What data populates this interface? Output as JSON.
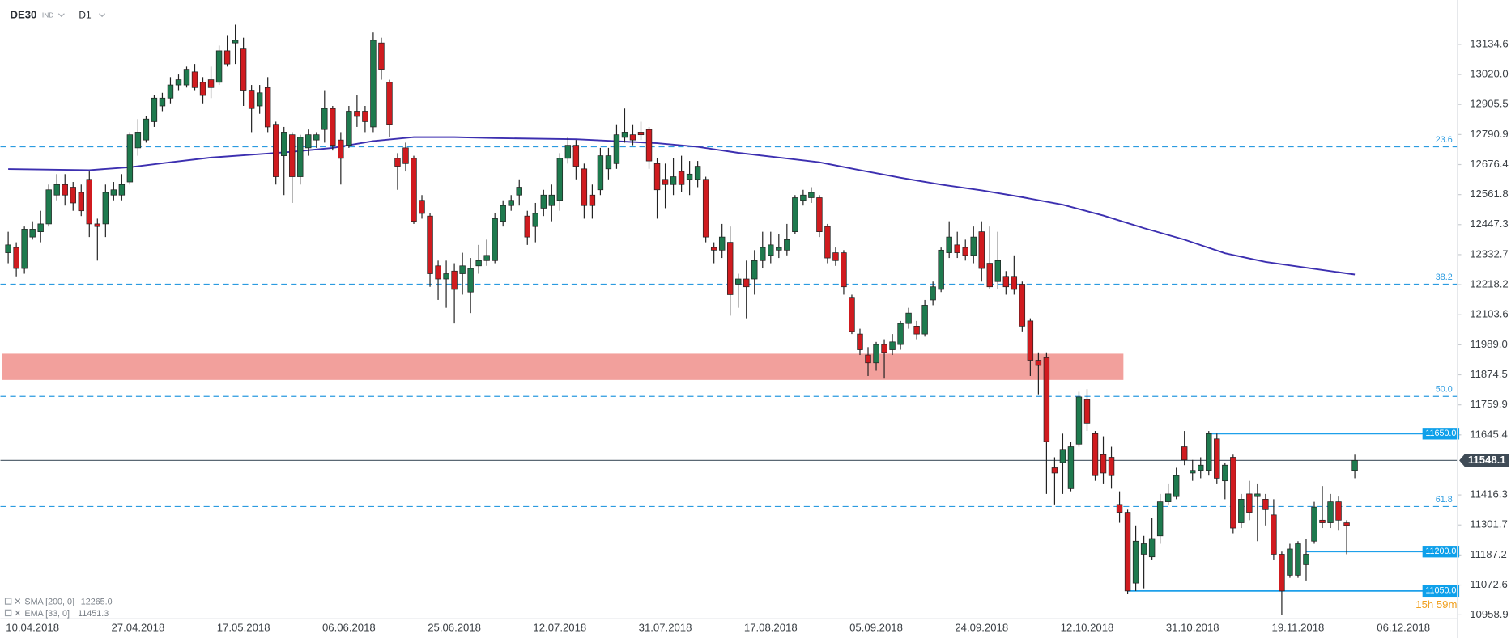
{
  "chart_data": {
    "type": "candlestick",
    "symbol": "DE30",
    "market": "IND",
    "timeframe": "D1",
    "up_color": "#1e7a4e",
    "down_color": "#d01b1f",
    "categories": [
      null,
      null,
      null,
      "10.04.2018",
      null,
      null,
      null,
      null,
      null,
      null,
      null,
      null,
      null,
      null,
      null,
      null,
      "27.04.2018",
      null,
      null,
      null,
      null,
      null,
      null,
      null,
      null,
      null,
      null,
      null,
      null,
      "17.05.2018",
      null,
      null,
      null,
      null,
      null,
      null,
      null,
      null,
      null,
      null,
      null,
      null,
      "06.06.2018",
      null,
      null,
      null,
      null,
      null,
      null,
      null,
      null,
      null,
      null,
      null,
      null,
      "25.06.2018",
      null,
      null,
      null,
      null,
      null,
      null,
      null,
      null,
      null,
      null,
      null,
      null,
      "12.07.2018",
      null,
      null,
      null,
      null,
      null,
      null,
      null,
      null,
      null,
      null,
      null,
      null,
      "31.07.2018",
      null,
      null,
      null,
      null,
      null,
      null,
      null,
      null,
      null,
      null,
      null,
      null,
      "17.08.2018",
      null,
      null,
      null,
      null,
      null,
      null,
      null,
      null,
      null,
      null,
      null,
      null,
      "05.09.2018",
      null,
      null,
      null,
      null,
      null,
      null,
      null,
      null,
      null,
      null,
      null,
      null,
      "24.09.2018",
      null,
      null,
      null,
      null,
      null,
      null,
      null,
      null,
      null,
      null,
      null,
      null,
      "12.10.2018",
      null,
      null,
      null,
      null,
      null,
      null,
      null,
      null,
      null,
      null,
      null,
      null,
      "31.10.2018",
      null,
      null,
      null,
      null,
      null,
      null,
      null,
      null,
      null,
      null,
      null,
      null,
      "19.11.2018",
      null,
      null,
      null,
      null,
      null,
      null,
      null,
      null,
      null,
      null,
      null,
      null,
      "06.12.2018"
    ],
    "open": [
      12340,
      12360,
      12280,
      12400,
      12420,
      12450,
      12560,
      12600,
      12590,
      12570,
      12620,
      12450,
      12450,
      12560,
      12560,
      12610,
      12740,
      12770,
      12840,
      12900,
      12930,
      12980,
      12980,
      13030,
      12990,
      13000,
      12990,
      13110,
      13140,
      13120,
      12960,
      12900,
      12970,
      12830,
      12710,
      12790,
      12630,
      12740,
      12770,
      12810,
      12890,
      12770,
      12750,
      12880,
      12880,
      12820,
      13140,
      12990,
      12700,
      12740,
      12700,
      12540,
      12480,
      12290,
      12240,
      12270,
      12260,
      12190,
      12290,
      12310,
      12310,
      12460,
      12520,
      12560,
      12480,
      12440,
      12510,
      12520,
      12540,
      12700,
      12750,
      12660,
      12560,
      12580,
      12660,
      12680,
      12780,
      12790,
      12800,
      12810,
      12680,
      12620,
      12600,
      12650,
      12620,
      12620,
      12620,
      12360,
      12350,
      12380,
      12220,
      12240,
      12240,
      12310,
      12330,
      12350,
      12350,
      12420,
      12540,
      12550,
      12550,
      12440,
      12340,
      12340,
      12170,
      12030,
      11950,
      11920,
      11990,
      11970,
      11990,
      12070,
      12060,
      12030,
      12160,
      12200,
      12340,
      12370,
      12360,
      12330,
      12420,
      12300,
      12230,
      12250,
      12250,
      12220,
      12080,
      11930,
      11940,
      11520,
      11540,
      11440,
      11610,
      11780,
      11650,
      11570,
      11560,
      11380,
      11350,
      11080,
      11190,
      11180,
      11260,
      11390,
      11410,
      11600,
      11500,
      11510,
      11510,
      11630,
      11470,
      11560,
      11310,
      11420,
      11410,
      11400,
      11340,
      11190,
      11110,
      11110,
      11150,
      11240,
      11320,
      11310,
      11390,
      11310,
      11510,
      null,
      null,
      null,
      null,
      null,
      null
    ],
    "high": [
      12420,
      12380,
      12440,
      12460,
      12500,
      12600,
      12640,
      12640,
      12610,
      12600,
      12650,
      12470,
      12600,
      12610,
      12640,
      12800,
      12850,
      12860,
      12940,
      12950,
      13010,
      13020,
      13050,
      13060,
      13010,
      13050,
      13130,
      13170,
      13210,
      13160,
      12980,
      12980,
      13010,
      12840,
      12820,
      12800,
      12790,
      12810,
      12800,
      12960,
      12900,
      12800,
      12900,
      12940,
      12900,
      13180,
      13160,
      13000,
      12720,
      12760,
      12710,
      12560,
      12490,
      12310,
      12310,
      12300,
      12340,
      12320,
      12370,
      12390,
      12490,
      12540,
      12560,
      12620,
      12500,
      12530,
      12580,
      12600,
      12720,
      12780,
      12770,
      12680,
      12600,
      12740,
      12740,
      12830,
      12890,
      12830,
      12840,
      12820,
      12700,
      12680,
      12700,
      12710,
      12690,
      12690,
      12630,
      12380,
      12450,
      12440,
      12260,
      12310,
      12350,
      12420,
      12420,
      12410,
      12450,
      12560,
      12580,
      12590,
      12560,
      12450,
      12360,
      12350,
      12180,
      12050,
      11980,
      12000,
      12010,
      12030,
      12080,
      12130,
      12080,
      12160,
      12230,
      12360,
      12460,
      12420,
      12390,
      12440,
      12460,
      12440,
      12420,
      12270,
      12330,
      12230,
      12090,
      11960,
      11960,
      11560,
      11650,
      11620,
      11810,
      11820,
      11660,
      11640,
      11600,
      11430,
      11360,
      11300,
      11260,
      11330,
      11420,
      11460,
      11520,
      11660,
      11550,
      11560,
      11660,
      11650,
      11540,
      11570,
      11420,
      11470,
      11460,
      11420,
      11400,
      11200,
      11230,
      11240,
      11250,
      11390,
      11450,
      11420,
      11410,
      11320,
      11570,
      null,
      null,
      null,
      null,
      null,
      null
    ],
    "low": [
      12300,
      12250,
      12260,
      12390,
      12380,
      12440,
      12540,
      12520,
      12500,
      12480,
      12400,
      12310,
      12400,
      12540,
      12540,
      12600,
      12710,
      12760,
      12820,
      12880,
      12910,
      12960,
      12970,
      12960,
      12910,
      12930,
      12980,
      13050,
      13060,
      12900,
      12800,
      12870,
      12800,
      12600,
      12560,
      12530,
      12600,
      12710,
      12740,
      12760,
      12730,
      12600,
      12740,
      12820,
      12800,
      12800,
      13000,
      12780,
      12580,
      12650,
      12450,
      12470,
      12210,
      12160,
      12130,
      12070,
      12180,
      12110,
      12260,
      12290,
      12300,
      12440,
      12500,
      12520,
      12370,
      12380,
      12480,
      12460,
      12500,
      12680,
      12620,
      12470,
      12470,
      12560,
      12620,
      12660,
      12760,
      12750,
      12770,
      12660,
      12470,
      12510,
      12560,
      12570,
      12560,
      12590,
      12380,
      12300,
      12320,
      12100,
      12130,
      12090,
      12180,
      12280,
      12300,
      12320,
      12330,
      12410,
      12520,
      12530,
      12400,
      12300,
      12290,
      12180,
      12030,
      11950,
      11870,
      11890,
      11860,
      11950,
      11970,
      12050,
      12010,
      12020,
      12140,
      12190,
      12320,
      12320,
      12310,
      12300,
      12230,
      12200,
      12200,
      12180,
      12180,
      12040,
      11870,
      11800,
      11420,
      11380,
      11420,
      11430,
      11600,
      11660,
      11470,
      11460,
      11440,
      11310,
      11040,
      11050,
      11060,
      11170,
      11230,
      11380,
      11400,
      11530,
      11470,
      11480,
      11490,
      11460,
      11400,
      11270,
      11290,
      11320,
      11240,
      11300,
      11170,
      10960,
      11100,
      11100,
      11090,
      11230,
      11290,
      11290,
      11280,
      11190,
      11480,
      null,
      null,
      null,
      null,
      null,
      null
    ],
    "close": [
      12370,
      12280,
      12430,
      12430,
      12450,
      12580,
      12600,
      12560,
      12530,
      12500,
      12450,
      12440,
      12570,
      12580,
      12600,
      12790,
      12800,
      12850,
      12930,
      12930,
      12980,
      13000,
      13040,
      12970,
      12940,
      12970,
      13110,
      13060,
      13150,
      12960,
      12890,
      12950,
      12820,
      12630,
      12800,
      12630,
      12780,
      12790,
      12790,
      12890,
      12750,
      12700,
      12880,
      12860,
      12840,
      13150,
      13040,
      12830,
      12670,
      12680,
      12460,
      12490,
      12260,
      12240,
      12260,
      12200,
      12290,
      12280,
      12310,
      12330,
      12470,
      12520,
      12540,
      12590,
      12400,
      12490,
      12560,
      12560,
      12700,
      12750,
      12670,
      12520,
      12520,
      12710,
      12710,
      12790,
      12800,
      12770,
      12790,
      12690,
      12580,
      12600,
      12630,
      12600,
      12640,
      12670,
      12400,
      12350,
      12400,
      12180,
      12240,
      12210,
      12310,
      12360,
      12370,
      12360,
      12390,
      12550,
      12560,
      12570,
      12420,
      12320,
      12310,
      12210,
      12040,
      11970,
      11920,
      11990,
      11960,
      12000,
      12070,
      12110,
      12030,
      12140,
      12210,
      12350,
      12400,
      12340,
      12330,
      12400,
      12280,
      12210,
      12310,
      12210,
      12200,
      12060,
      11930,
      11910,
      11620,
      11500,
      11590,
      11600,
      11790,
      11690,
      11490,
      11500,
      11490,
      11350,
      11050,
      11240,
      11230,
      11250,
      11390,
      11420,
      11490,
      11550,
      11510,
      11530,
      11650,
      11480,
      11530,
      11290,
      11400,
      11350,
      11420,
      11360,
      11190,
      11050,
      11210,
      11230,
      11190,
      11370,
      11310,
      11390,
      11320,
      11300,
      11548.1,
      null,
      null,
      null,
      null,
      null,
      null
    ],
    "sma": {
      "name": "SMA [200, 0]",
      "legend_value": "12265.0",
      "color": "#3c2fb0",
      "x": [
        0,
        10,
        15,
        20,
        25,
        30,
        35,
        40,
        45,
        50,
        55,
        60,
        70,
        80,
        85,
        90,
        95,
        100,
        105,
        110,
        115,
        120,
        125,
        130,
        135,
        140,
        145,
        150,
        155,
        160,
        166
      ],
      "values": [
        12659,
        12655,
        12666,
        12685,
        12703,
        12714,
        12725,
        12740,
        12766,
        12781,
        12781,
        12777,
        12773,
        12758,
        12744,
        12721,
        12703,
        12685,
        12655,
        12626,
        12600,
        12578,
        12552,
        12523,
        12482,
        12434,
        12390,
        12338,
        12305,
        12283,
        12257
      ]
    },
    "ema": {
      "name": "EMA [33, 0]",
      "legend_value": "11451.3"
    },
    "ylim": [
      10926,
      13304
    ],
    "yticks": [
      {
        "value": 13134.6,
        "label": "13134.6"
      },
      {
        "value": 13020.0,
        "label": "13020.0"
      },
      {
        "value": 12905.5,
        "label": "12905.5"
      },
      {
        "value": 12790.9,
        "label": "12790.9"
      },
      {
        "value": 12676.4,
        "label": "12676.4"
      },
      {
        "value": 12561.8,
        "label": "12561.8"
      },
      {
        "value": 12447.3,
        "label": "12447.3"
      },
      {
        "value": 12332.7,
        "label": "12332.7"
      },
      {
        "value": 12218.2,
        "label": "12218.2"
      },
      {
        "value": 12103.6,
        "label": "12103.6"
      },
      {
        "value": 11989.0,
        "label": "11989.0"
      },
      {
        "value": 11874.5,
        "label": "11874.5"
      },
      {
        "value": 11759.9,
        "label": "11759.9"
      },
      {
        "value": 11645.4,
        "label": "11645.4"
      },
      {
        "value": 11416.3,
        "label": "11416.3"
      },
      {
        "value": 11301.7,
        "label": "11301.7"
      },
      {
        "value": 11187.2,
        "label": "11187.2"
      },
      {
        "value": 11072.6,
        "label": "11072.6"
      },
      {
        "value": 10958.9,
        "label": "10958.9"
      }
    ],
    "fib_levels": [
      {
        "value": 12744,
        "label": "23.6"
      },
      {
        "value": 12220,
        "label": "38.2"
      },
      {
        "value": 11792,
        "label": "50.0"
      },
      {
        "value": 11372,
        "label": "61.8"
      }
    ],
    "levels": [
      {
        "value": 11650,
        "label": "11650.0",
        "from": 148
      },
      {
        "value": 11200,
        "label": "11200.0",
        "from": 160
      },
      {
        "value": 11050,
        "label": "11050.0",
        "from": 138
      }
    ],
    "zone": {
      "low": 11855,
      "high": 11955,
      "from": 0,
      "to": 137,
      "color": "#f2a09c"
    },
    "last_price": 11548.1,
    "countdown": "15h 59m"
  }
}
